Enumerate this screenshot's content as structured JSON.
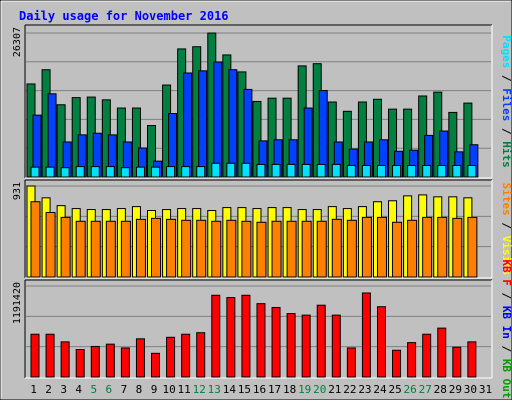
{
  "chart_data": {
    "type": "bar",
    "title": "Daily usage for November 2016",
    "categories": [
      "1",
      "2",
      "3",
      "4",
      "5",
      "6",
      "7",
      "8",
      "9",
      "10",
      "11",
      "12",
      "13",
      "14",
      "15",
      "16",
      "17",
      "18",
      "19",
      "20",
      "21",
      "22",
      "23",
      "24",
      "25",
      "26",
      "27",
      "28",
      "29",
      "30",
      "31"
    ],
    "weekend_days": [
      "5",
      "6",
      "12",
      "13",
      "19",
      "20",
      "26",
      "27"
    ],
    "panels": [
      {
        "id": "pages-files-hits",
        "ymax": 26307,
        "ymax_label": "26307",
        "side_label_parts": [
          {
            "text": "Pages",
            "color": "#00e0ff"
          },
          {
            "text": " / ",
            "color": "#000000"
          },
          {
            "text": "Files",
            "color": "#0040ff"
          },
          {
            "text": " / ",
            "color": "#000000"
          },
          {
            "text": "Hits",
            "color": "#008040"
          }
        ],
        "series": [
          {
            "name": "Hits",
            "color": "#008040",
            "values": [
              17000,
              19600,
              13200,
              14500,
              14600,
              14100,
              12600,
              12600,
              9400,
              16800,
              23400,
              23800,
              26300,
              22300,
              19200,
              13800,
              14400,
              14400,
              20300,
              20700,
              13700,
              12000,
              13700,
              14200,
              12400,
              12400,
              14800,
              15500,
              11800,
              13500,
              0
            ]
          },
          {
            "name": "Files",
            "color": "#0040ff",
            "values": [
              11300,
              15200,
              6400,
              7700,
              8000,
              7700,
              6400,
              5300,
              2900,
              11600,
              19000,
              19400,
              21000,
              19600,
              16000,
              6600,
              6800,
              6800,
              12600,
              15800,
              6400,
              5100,
              6400,
              6800,
              4700,
              4900,
              7600,
              8400,
              4600,
              5900,
              0
            ]
          },
          {
            "name": "Pages",
            "color": "#00e0ff",
            "values": [
              1800,
              1800,
              1700,
              1900,
              1900,
              1900,
              1700,
              1800,
              1800,
              1900,
              1900,
              1900,
              2500,
              2500,
              2500,
              2300,
              2300,
              2300,
              2300,
              2300,
              2300,
              2100,
              2100,
              2100,
              2100,
              2100,
              2100,
              2100,
              2100,
              2100,
              0
            ]
          }
        ]
      },
      {
        "id": "visits-sites",
        "ymax": 931,
        "ymax_label": "931",
        "side_label_parts": [
          {
            "text": "Sites",
            "color": "#ff8000"
          },
          {
            "text": " / ",
            "color": "#000000"
          },
          {
            "text": "Visits",
            "color": "#ffff00"
          }
        ],
        "series": [
          {
            "name": "Visits",
            "color": "#ffff00",
            "values": [
              931,
              810,
              730,
              700,
              690,
              690,
              700,
              720,
              680,
              690,
              700,
              700,
              680,
              710,
              710,
              700,
              710,
              710,
              690,
              690,
              720,
              700,
              720,
              770,
              780,
              830,
              840,
              820,
              820,
              810,
              0
            ]
          },
          {
            "name": "Sites",
            "color": "#ff8000",
            "values": [
              770,
              660,
              610,
              570,
              570,
              570,
              570,
              590,
              600,
              590,
              580,
              580,
              570,
              580,
              570,
              560,
              570,
              570,
              570,
              570,
              590,
              580,
              610,
              610,
              560,
              580,
              610,
              610,
              600,
              610,
              0
            ]
          }
        ]
      },
      {
        "id": "kbytes",
        "ymax": 1191420,
        "ymax_label": "1191420",
        "side_label_parts": [
          {
            "text": "KB F",
            "color": "#ff0000"
          },
          {
            "text": " / ",
            "color": "#000000"
          },
          {
            "text": "KB In",
            "color": "#0000ff"
          },
          {
            "text": " / ",
            "color": "#000000"
          },
          {
            "text": "KB Out",
            "color": "#00a000"
          }
        ],
        "series": [
          {
            "name": "KB F",
            "color": "#ff0000",
            "values": [
              560000,
              560000,
              460000,
              360000,
              400000,
              430000,
              380000,
              500000,
              310000,
              520000,
              560000,
              580000,
              1070000,
              1040000,
              1070000,
              960000,
              910000,
              830000,
              810000,
              940000,
              810000,
              380000,
              1100000,
              920000,
              350000,
              450000,
              560000,
              640000,
              390000,
              460000,
              0
            ]
          }
        ]
      }
    ]
  }
}
